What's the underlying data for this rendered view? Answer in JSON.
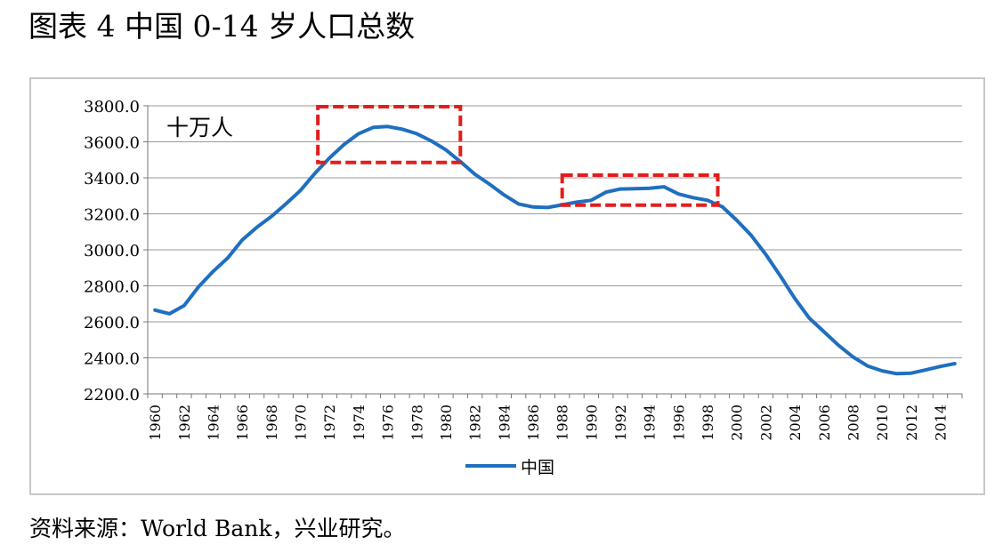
{
  "figure": {
    "title": "图表 4 中国 0-14 岁人口总数",
    "source": "资料来源：World Bank，兴业研究。"
  },
  "chart_data": {
    "type": "line",
    "unit_label": "十万人",
    "ylim": [
      2200,
      3800
    ],
    "y_ticks": [
      "2200.0",
      "2400.0",
      "2600.0",
      "2800.0",
      "3000.0",
      "3200.0",
      "3400.0",
      "3600.0",
      "3800.0"
    ],
    "y_tick_values": [
      2200,
      2400,
      2600,
      2800,
      3000,
      3200,
      3400,
      3600,
      3800
    ],
    "x_tick_labels": [
      "1960",
      "1962",
      "1964",
      "1966",
      "1968",
      "1970",
      "1972",
      "1974",
      "1976",
      "1978",
      "1980",
      "1982",
      "1984",
      "1986",
      "1988",
      "1990",
      "1992",
      "1994",
      "1996",
      "1998",
      "2000",
      "2002",
      "2004",
      "2006",
      "2008",
      "2010",
      "2012",
      "2014"
    ],
    "grid": true,
    "legend_position": "bottom-center",
    "series": [
      {
        "name": "中国",
        "color": "#1f6fbf",
        "x": [
          1960,
          1961,
          1962,
          1963,
          1964,
          1965,
          1966,
          1967,
          1968,
          1969,
          1970,
          1971,
          1972,
          1973,
          1974,
          1975,
          1976,
          1977,
          1978,
          1979,
          1980,
          1981,
          1982,
          1983,
          1984,
          1985,
          1986,
          1987,
          1988,
          1989,
          1990,
          1991,
          1992,
          1993,
          1994,
          1995,
          1996,
          1997,
          1998,
          1999,
          2000,
          2001,
          2002,
          2003,
          2004,
          2005,
          2006,
          2007,
          2008,
          2009,
          2010,
          2011,
          2012,
          2013,
          2014,
          2015
        ],
        "values": [
          2665,
          2645,
          2690,
          2795,
          2880,
          2955,
          3055,
          3125,
          3185,
          3255,
          3330,
          3425,
          3510,
          3585,
          3645,
          3680,
          3685,
          3670,
          3645,
          3605,
          3555,
          3490,
          3420,
          3365,
          3305,
          3255,
          3238,
          3235,
          3250,
          3265,
          3275,
          3320,
          3338,
          3340,
          3342,
          3350,
          3310,
          3290,
          3275,
          3240,
          3165,
          3080,
          2975,
          2855,
          2730,
          2620,
          2545,
          2470,
          2405,
          2355,
          2328,
          2312,
          2315,
          2333,
          2352,
          2368
        ]
      }
    ],
    "annotations": [
      {
        "type": "dashed-rect",
        "color": "#e31d1d",
        "x_range": [
          1971.2,
          1981.0
        ],
        "y_range": [
          3485,
          3795
        ]
      },
      {
        "type": "dashed-rect",
        "color": "#e31d1d",
        "x_range": [
          1988.0,
          1998.7
        ],
        "y_range": [
          3248,
          3415
        ]
      }
    ]
  }
}
